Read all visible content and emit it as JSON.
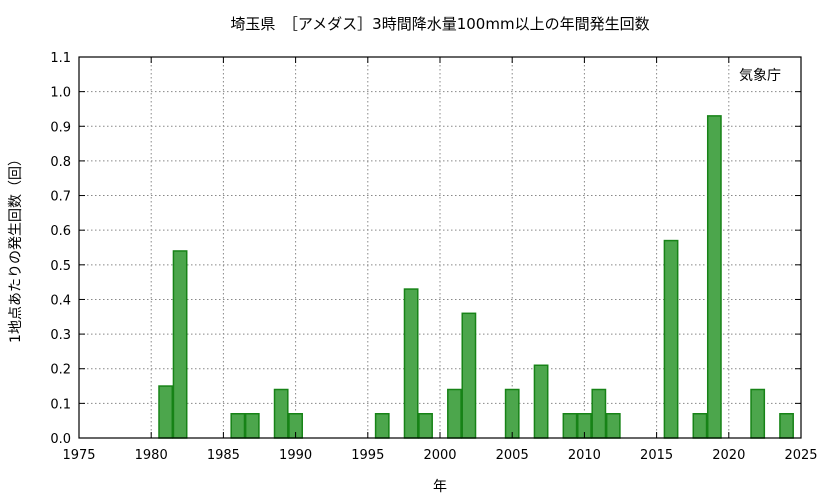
{
  "chart_data": {
    "type": "bar",
    "title": "埼玉県　［アメダス］3時間降水量100mm以上の年間発生回数",
    "xlabel": "年",
    "ylabel": "1地点あたりの発生回数（回）",
    "annotation": "気象庁",
    "xlim": [
      1975,
      2025
    ],
    "ylim": [
      0,
      1.1
    ],
    "xticks": [
      "1975",
      "1980",
      "1985",
      "1990",
      "1995",
      "2000",
      "2005",
      "2010",
      "2015",
      "2020",
      "2025"
    ],
    "yticks": [
      "0.0",
      "0.1",
      "0.2",
      "0.3",
      "0.4",
      "0.5",
      "0.6",
      "0.7",
      "0.8",
      "0.9",
      "1.0",
      "1.1"
    ],
    "grid": true,
    "bar_color": "#4ca64c",
    "bar_edge_color": "#178317",
    "x": [
      1981,
      1982,
      1986,
      1987,
      1989,
      1990,
      1996,
      1998,
      1999,
      2001,
      2002,
      2005,
      2007,
      2009,
      2010,
      2011,
      2012,
      2016,
      2018,
      2019,
      2022,
      2024
    ],
    "values": [
      0.15,
      0.54,
      0.07,
      0.07,
      0.14,
      0.07,
      0.07,
      0.43,
      0.07,
      0.14,
      0.36,
      0.14,
      0.21,
      0.07,
      0.07,
      0.14,
      0.07,
      0.57,
      0.07,
      0.93,
      0.14,
      0.07
    ]
  }
}
